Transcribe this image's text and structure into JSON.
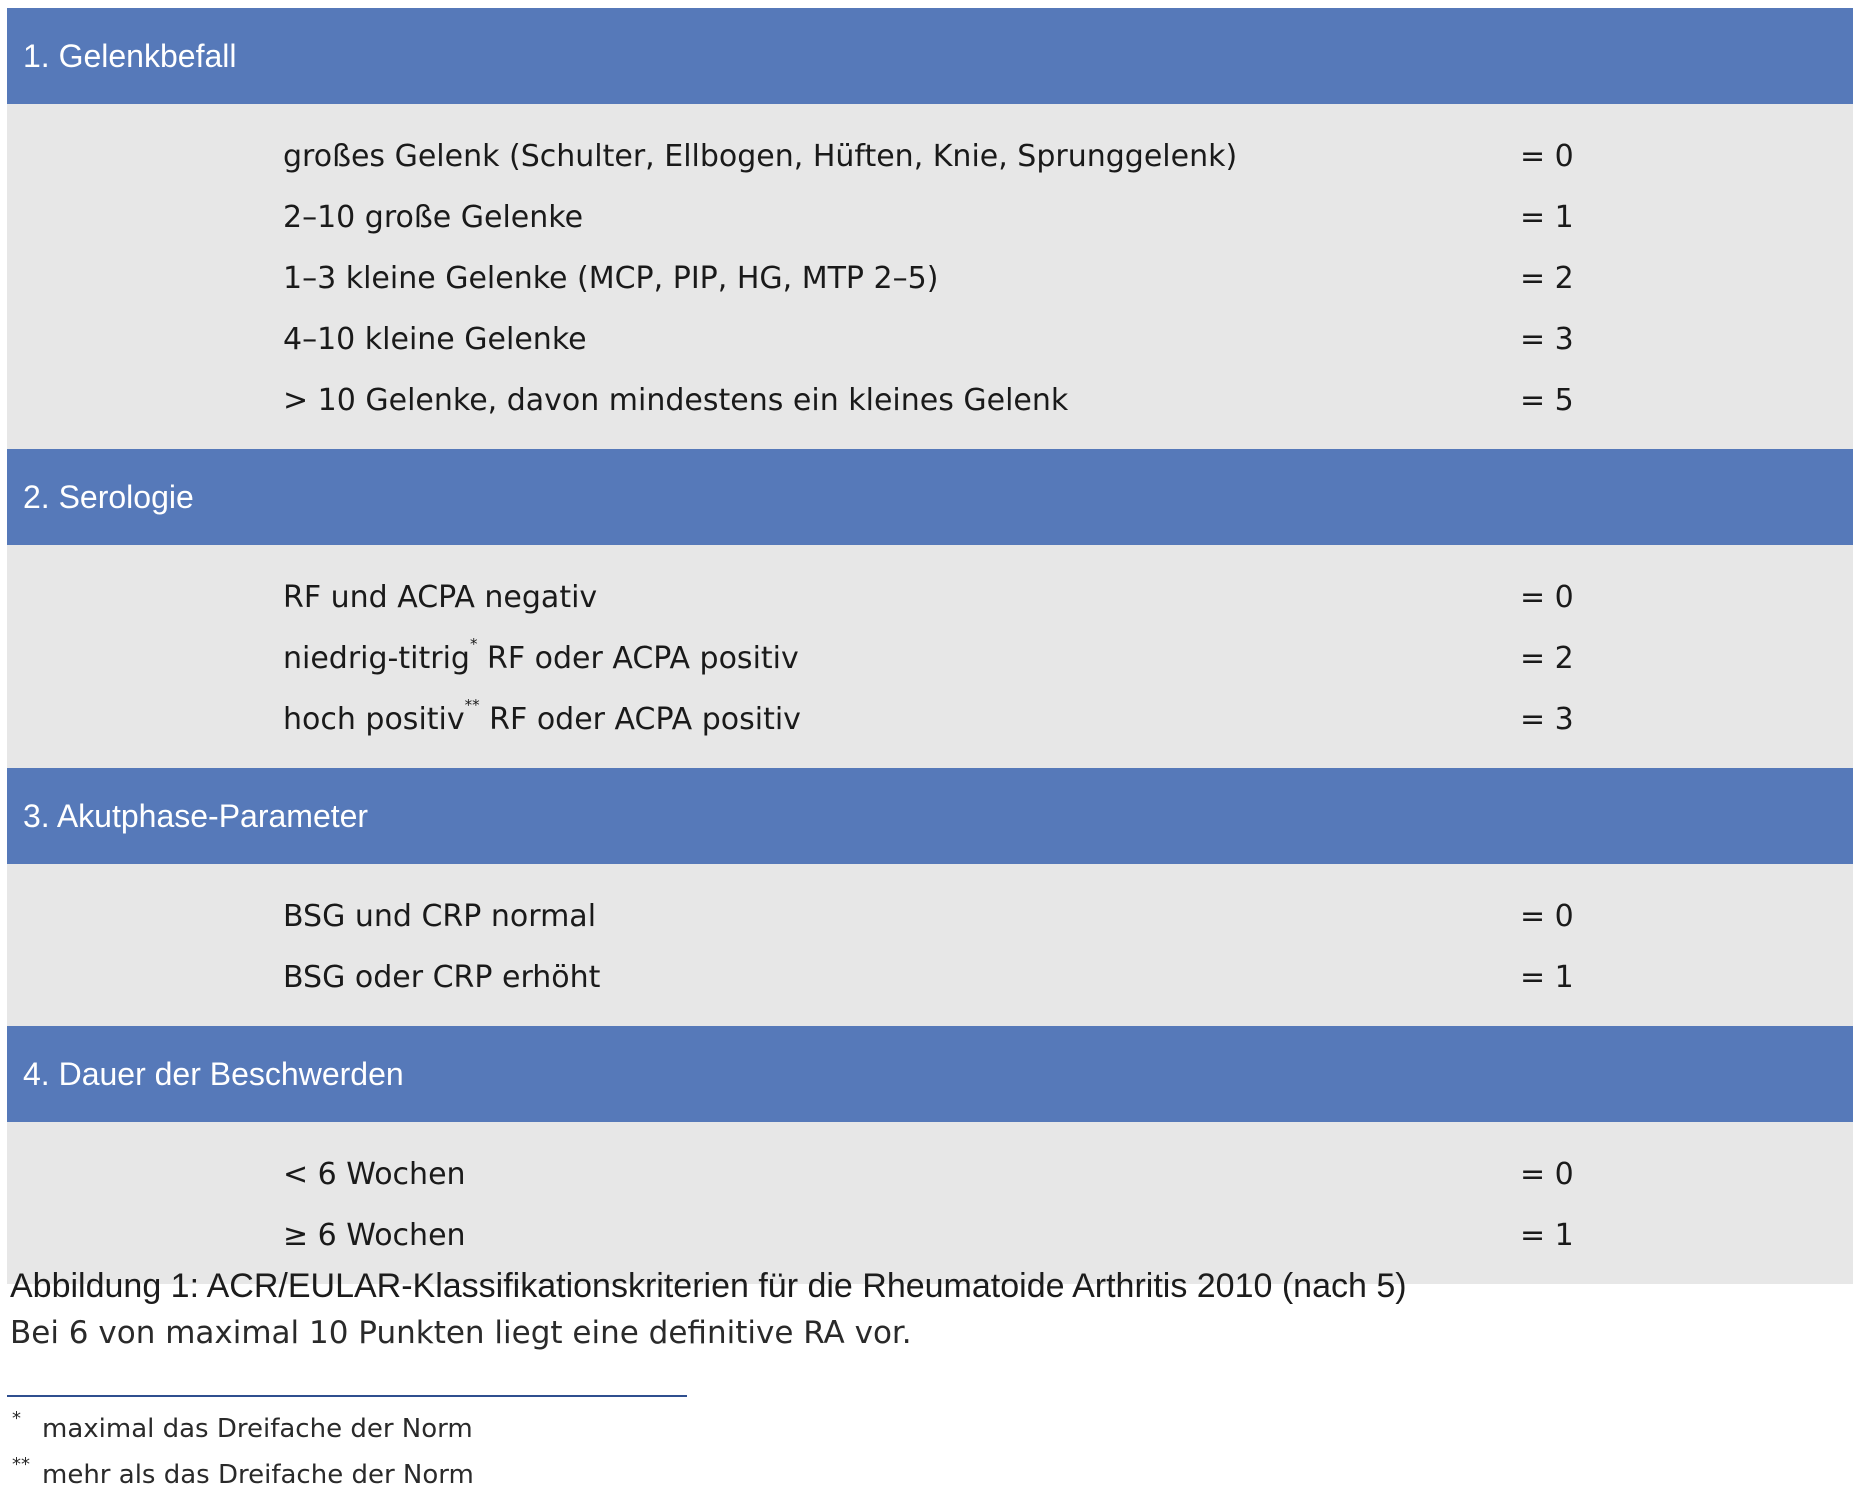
{
  "sections": [
    {
      "title": "1. Gelenkbefall",
      "rows": [
        {
          "criterion": "großes Gelenk (Schulter, Ellbogen, Hüften, Knie, Sprunggelenk)",
          "marker": "",
          "rest": "",
          "score": "= 0"
        },
        {
          "criterion": "2–10 große Gelenke",
          "marker": "",
          "rest": "",
          "score": "= 1"
        },
        {
          "criterion": "1–3 kleine Gelenke (MCP, PIP, HG, MTP 2–5)",
          "marker": "",
          "rest": "",
          "score": "= 2"
        },
        {
          "criterion": "4–10 kleine Gelenke",
          "marker": "",
          "rest": "",
          "score": "= 3"
        },
        {
          "criterion": "> 10 Gelenke, davon mindestens ein kleines Gelenk",
          "marker": "",
          "rest": "",
          "score": "= 5"
        }
      ]
    },
    {
      "title": "2. Serologie",
      "rows": [
        {
          "criterion": "RF und ACPA negativ",
          "marker": "",
          "rest": "",
          "score": "= 0"
        },
        {
          "criterion": "niedrig-titrig",
          "marker": "*",
          "rest": " RF oder ACPA positiv",
          "score": "= 2"
        },
        {
          "criterion": "hoch positiv",
          "marker": "**",
          "rest": " RF oder ACPA positiv",
          "score": "= 3"
        }
      ]
    },
    {
      "title": "3. Akutphase-Parameter",
      "rows": [
        {
          "criterion": "BSG und CRP normal",
          "marker": "",
          "rest": "",
          "score": "= 0"
        },
        {
          "criterion": "BSG oder CRP erhöht",
          "marker": "",
          "rest": "",
          "score": "= 1"
        }
      ]
    },
    {
      "title": "4. Dauer der Beschwerden",
      "rows": [
        {
          "criterion": "< 6 Wochen",
          "marker": "",
          "rest": "",
          "score": "= 0"
        },
        {
          "criterion": "≥ 6 Wochen",
          "marker": "",
          "rest": "",
          "score": "= 1"
        }
      ]
    }
  ],
  "caption": {
    "title": "Abbildung 1: ACR/EULAR-Klassifikationskriterien für die Rheumatoide Arthritis 2010 (nach 5)",
    "text": "Bei 6 von maximal 10 Punkten liegt eine definitive RA vor."
  },
  "footnotes": [
    {
      "mark": "*",
      "text": "maximal das Dreifache der Norm"
    },
    {
      "mark": "**",
      "text": "mehr als das Dreifache der Norm"
    }
  ],
  "colors": {
    "header_bg": "#5679b9",
    "body_bg": "#e7e7e7",
    "rule": "#2f4f8f"
  }
}
